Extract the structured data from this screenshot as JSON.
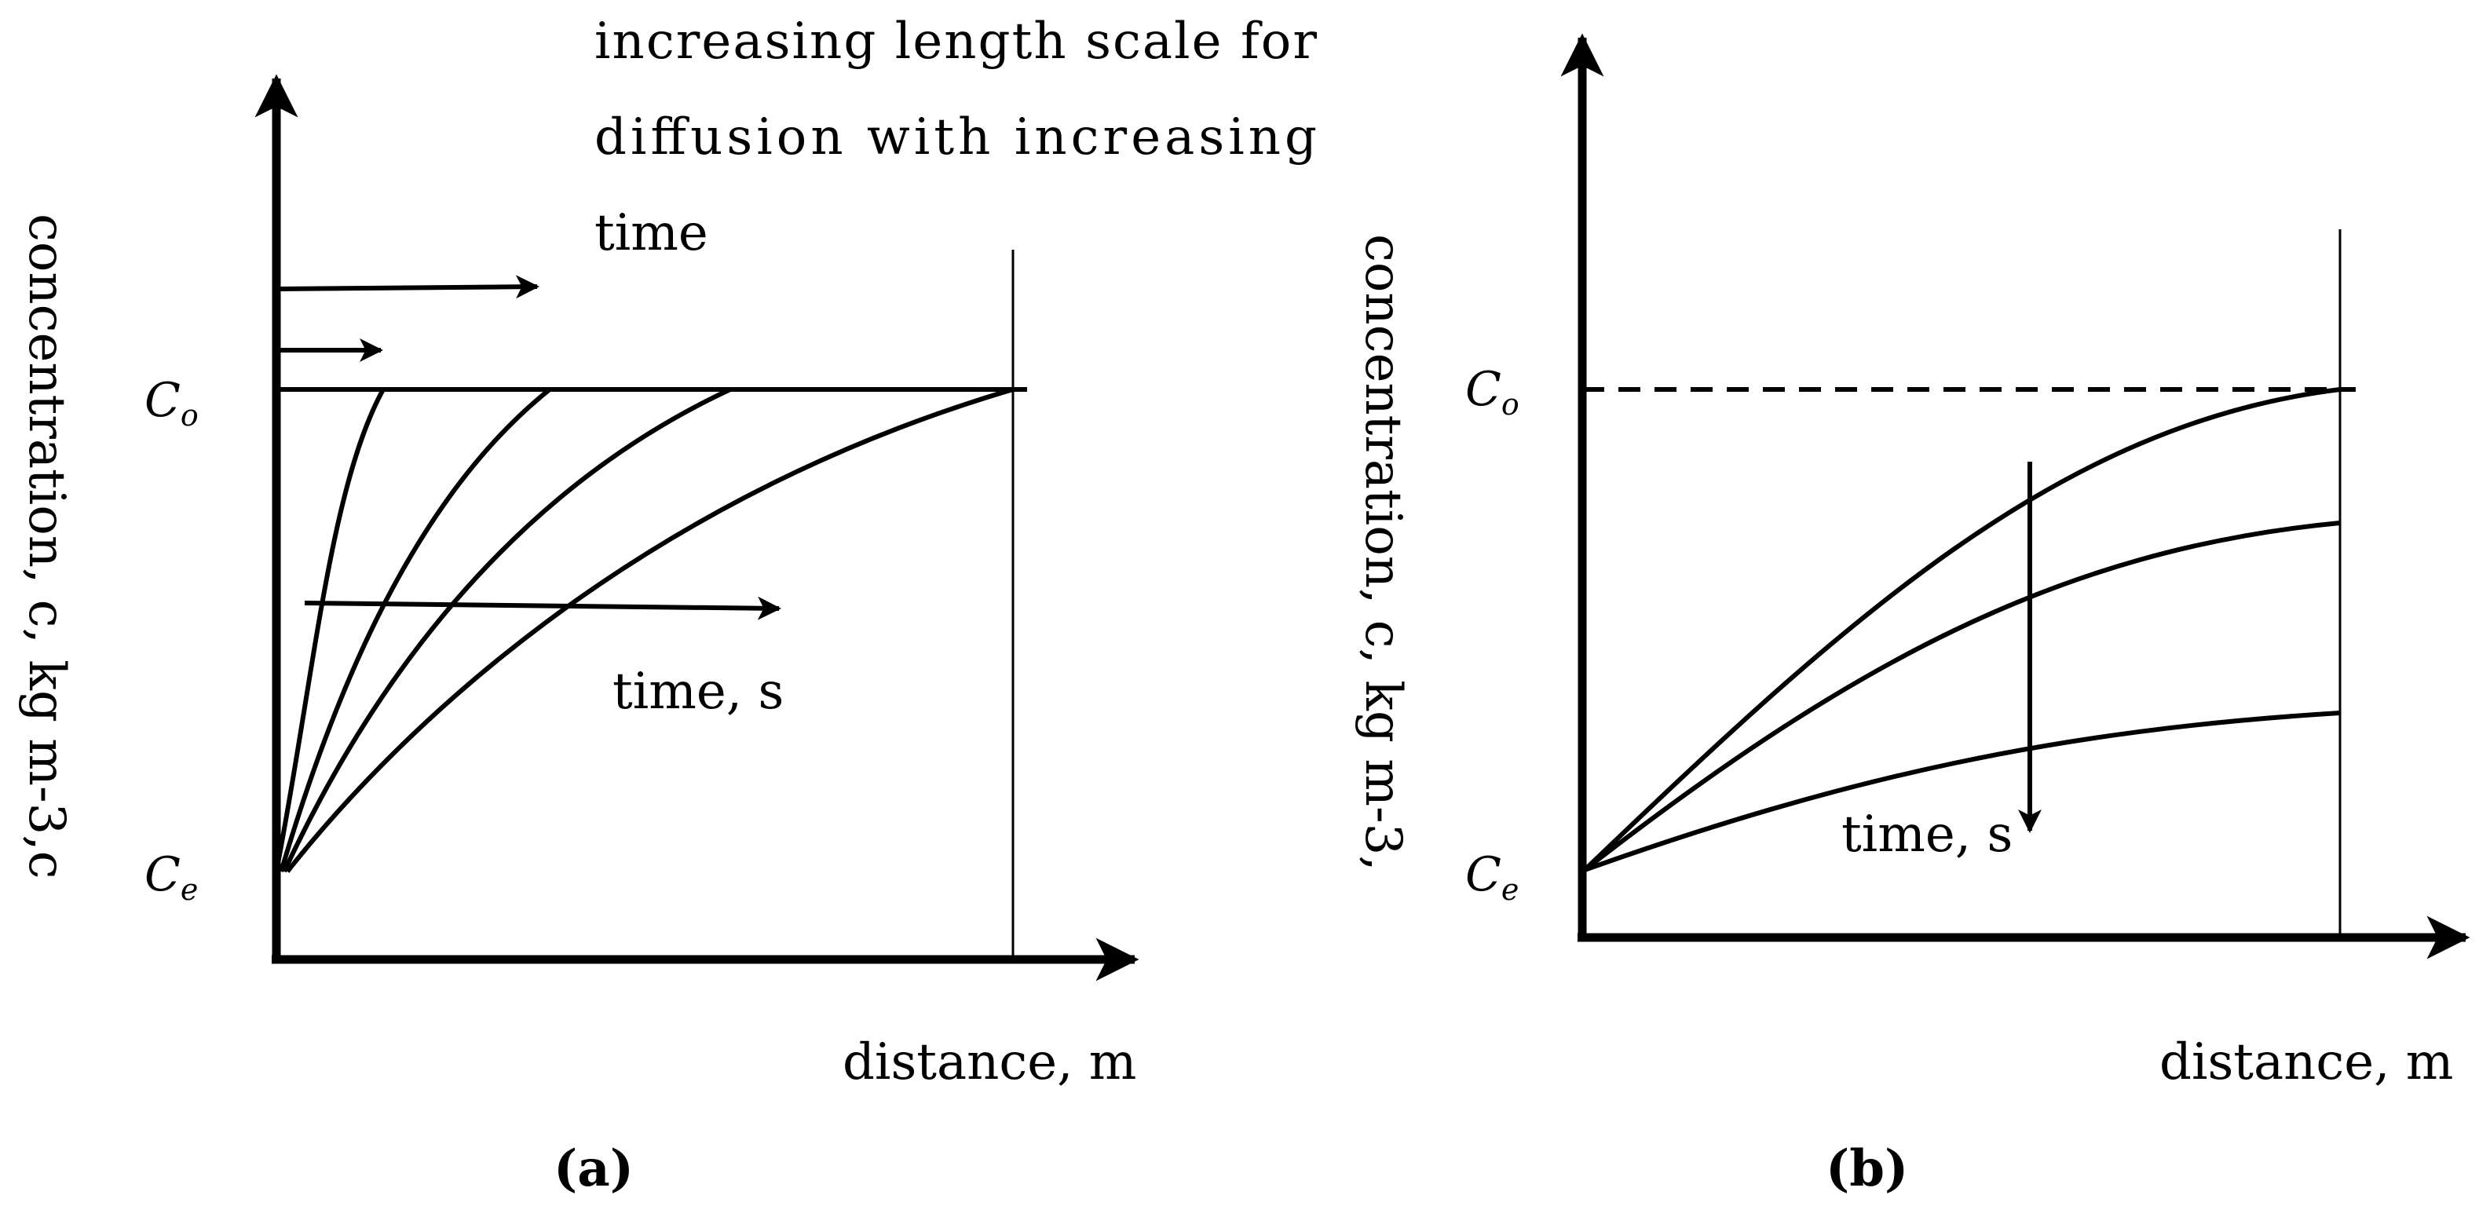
{
  "panel_a": {
    "caption": "(a)",
    "y_axis_label": "concentration, c, kg m-3,c",
    "x_axis_label": "distance, m",
    "note_lines": [
      "increasing length scale for",
      "diffusion with increasing",
      "time"
    ],
    "time_label": "time, s",
    "c0_main": "C",
    "c0_sub": "o",
    "ce_main": "C",
    "ce_sub": "e"
  },
  "panel_b": {
    "caption": "(b)",
    "y_axis_label": "concentration, c, kg m-3,",
    "x_axis_label": "distance, m",
    "time_label": "time, s",
    "c0_main": "C",
    "c0_sub": "o",
    "ce_main": "C",
    "ce_sub": "e"
  }
}
